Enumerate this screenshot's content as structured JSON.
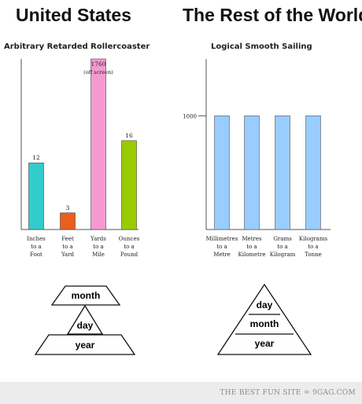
{
  "headings": {
    "left": "United States",
    "right": "The Rest of the World"
  },
  "chart_data": [
    {
      "type": "bar",
      "title": "Arbitrary Retarded Rollercoaster",
      "categories": [
        "Inches to a Foot",
        "Feet to a Yard",
        "Yards to a Mile",
        "Ounces to a Pound"
      ],
      "category_lines": [
        [
          "Inches",
          "to a",
          "Foot"
        ],
        [
          "Feet",
          "to a",
          "Yard"
        ],
        [
          "Yards",
          "to a",
          "Mile"
        ],
        [
          "Ounces",
          "to a",
          "Pound"
        ]
      ],
      "values": [
        12,
        3,
        1760,
        16
      ],
      "value_labels": [
        "12",
        "3",
        "1760",
        "16"
      ],
      "annotation": "(off screen)",
      "colors": [
        "#33cccc",
        "#e8601c",
        "#f49ad1",
        "#99cc00"
      ],
      "ylim": [
        0,
        30
      ],
      "grid": false
    },
    {
      "type": "bar",
      "title": "Logical Smooth Sailing",
      "categories": [
        "Millimetres to a Metre",
        "Metres to a Kilometre",
        "Grams to a Kilogram",
        "Kilograms to a Tonne"
      ],
      "category_lines": [
        [
          "Millimetres",
          "to a",
          "Metre"
        ],
        [
          "Metres",
          "to a",
          "Kilometre"
        ],
        [
          "Grams",
          "to a",
          "Kilogram"
        ],
        [
          "Kilograms",
          "to a",
          "Tonne"
        ]
      ],
      "values": [
        1000,
        1000,
        1000,
        1000
      ],
      "yticks": [
        "1000"
      ],
      "colors": [
        "#99ccff"
      ],
      "ylim": [
        0,
        1500
      ],
      "grid": false
    }
  ],
  "pyramids": {
    "left": [
      "month",
      "day",
      "year"
    ],
    "right": [
      "day",
      "month",
      "year"
    ]
  },
  "footer": {
    "text": "THE BEST FUN SITE = 9GAG.COM"
  }
}
